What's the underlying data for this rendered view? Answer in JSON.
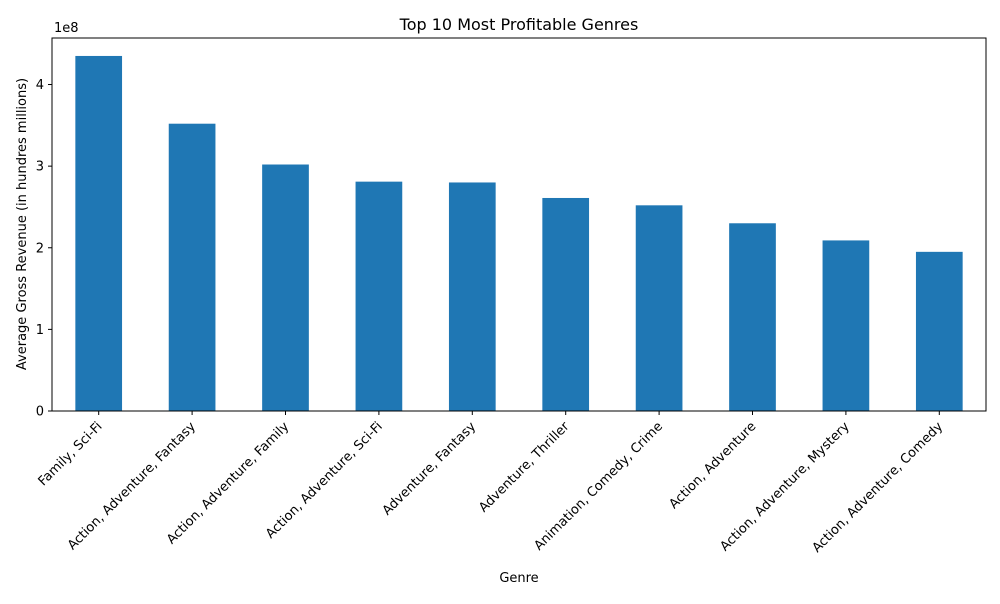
{
  "chart_data": {
    "type": "bar",
    "title": "Top 10 Most Profitable Genres",
    "xlabel": "Genre",
    "ylabel": "Average Gross Revenue (in hundres millions)",
    "offset_label": "1e8",
    "categories": [
      "Family, Sci-Fi",
      "Action, Adventure, Fantasy",
      "Action, Adventure, Family",
      "Action, Adventure, Sci-Fi",
      "Adventure, Fantasy",
      "Adventure, Thriller",
      "Animation, Comedy, Crime",
      "Action, Adventure",
      "Action, Adventure, Mystery",
      "Action, Adventure, Comedy"
    ],
    "values": [
      4.35,
      3.52,
      3.02,
      2.81,
      2.8,
      2.61,
      2.52,
      2.3,
      2.09,
      1.95
    ],
    "ylim": [
      0,
      4.57
    ],
    "yticks": [
      0,
      1,
      2,
      3,
      4
    ],
    "ytick_labels": [
      "0",
      "1",
      "2",
      "3",
      "4"
    ],
    "bar_color": "#1f77b4",
    "grid": false,
    "legend": "none"
  }
}
